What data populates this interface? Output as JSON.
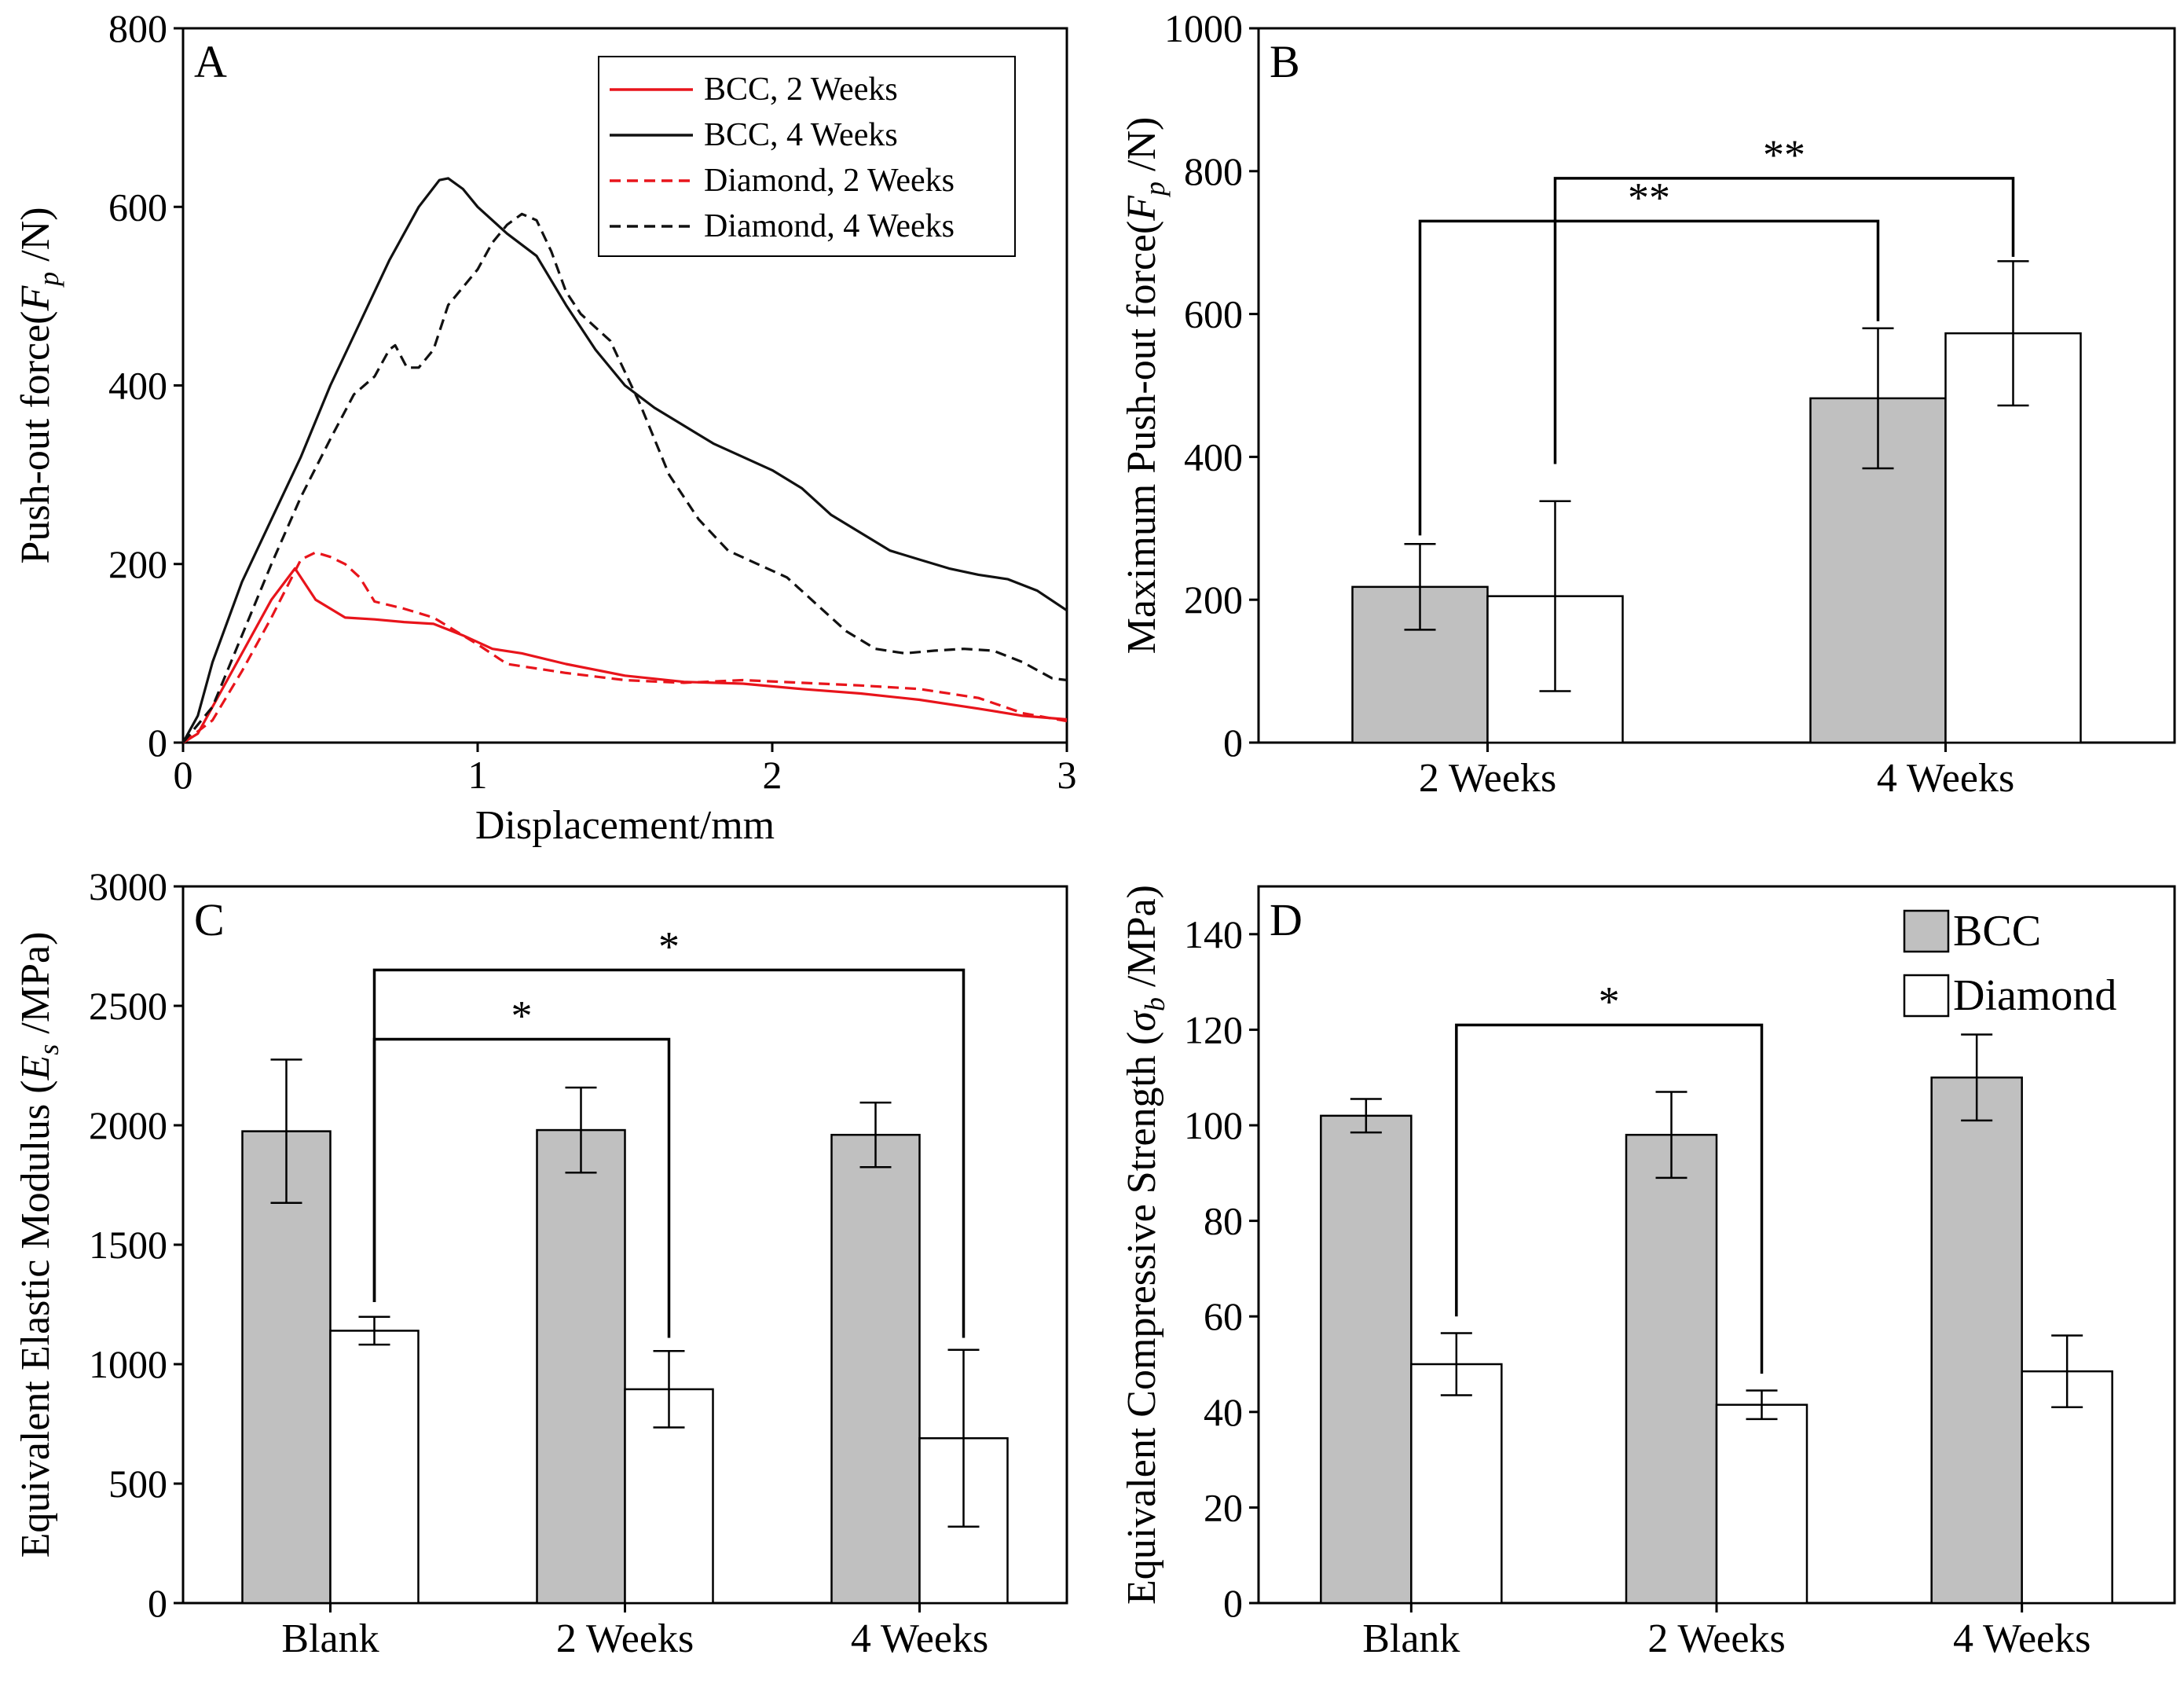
{
  "chart_data": [
    {
      "panel": "A",
      "type": "line",
      "xlabel": "Displacement/mm",
      "ylabel_prefix": "Push-out force(",
      "ylabel_sym": "F",
      "ylabel_sub": "p",
      "ylabel_suffix": " /N)",
      "xlim": [
        0,
        3
      ],
      "ylim": [
        0,
        800
      ],
      "xticks": [
        0,
        1,
        2,
        3
      ],
      "yticks": [
        0,
        200,
        400,
        600,
        800
      ],
      "legend_position": "top-right",
      "series": [
        {
          "name": "BCC, 2 Weeks",
          "color": "#e8141b",
          "dash": "solid",
          "x": [
            0,
            0.05,
            0.1,
            0.2,
            0.3,
            0.38,
            0.45,
            0.55,
            0.65,
            0.75,
            0.85,
            0.95,
            1.05,
            1.15,
            1.3,
            1.5,
            1.7,
            1.9,
            2.1,
            2.3,
            2.5,
            2.7,
            2.85,
            3.0
          ],
          "y": [
            0,
            10,
            40,
            100,
            160,
            195,
            160,
            140,
            138,
            135,
            133,
            120,
            105,
            100,
            88,
            75,
            68,
            66,
            60,
            55,
            48,
            38,
            30,
            26
          ]
        },
        {
          "name": "BCC, 4 Weeks",
          "color": "#111111",
          "dash": "solid",
          "x": [
            0,
            0.05,
            0.1,
            0.2,
            0.3,
            0.4,
            0.5,
            0.6,
            0.7,
            0.8,
            0.87,
            0.9,
            0.95,
            1.0,
            1.1,
            1.2,
            1.3,
            1.4,
            1.5,
            1.6,
            1.7,
            1.8,
            1.9,
            2.0,
            2.1,
            2.2,
            2.3,
            2.4,
            2.5,
            2.6,
            2.7,
            2.8,
            2.9,
            3.0
          ],
          "y": [
            0,
            30,
            90,
            180,
            250,
            320,
            400,
            470,
            540,
            600,
            630,
            632,
            620,
            600,
            570,
            545,
            490,
            440,
            400,
            375,
            355,
            335,
            320,
            305,
            285,
            255,
            235,
            215,
            205,
            195,
            188,
            183,
            170,
            148
          ]
        },
        {
          "name": "Diamond, 2 Weeks",
          "color": "#e8141b",
          "dash": "dashed",
          "x": [
            0,
            0.1,
            0.2,
            0.3,
            0.4,
            0.45,
            0.5,
            0.55,
            0.6,
            0.65,
            0.75,
            0.85,
            1.0,
            1.1,
            1.3,
            1.5,
            1.7,
            1.9,
            2.1,
            2.3,
            2.5,
            2.7,
            2.85,
            3.0
          ],
          "y": [
            0,
            25,
            80,
            140,
            205,
            213,
            208,
            200,
            185,
            158,
            150,
            140,
            110,
            88,
            78,
            70,
            67,
            70,
            67,
            64,
            60,
            50,
            33,
            24
          ]
        },
        {
          "name": "Diamond, 4 Weeks",
          "color": "#111111",
          "dash": "dashed",
          "x": [
            0,
            0.1,
            0.2,
            0.3,
            0.4,
            0.5,
            0.58,
            0.65,
            0.7,
            0.72,
            0.76,
            0.8,
            0.85,
            0.9,
            0.95,
            1.0,
            1.05,
            1.1,
            1.15,
            1.2,
            1.25,
            1.3,
            1.35,
            1.45,
            1.55,
            1.65,
            1.75,
            1.85,
            1.95,
            2.05,
            2.15,
            2.25,
            2.35,
            2.45,
            2.55,
            2.65,
            2.75,
            2.85,
            2.95,
            3.0
          ],
          "y": [
            0,
            40,
            120,
            200,
            275,
            340,
            390,
            410,
            440,
            445,
            420,
            420,
            440,
            490,
            510,
            530,
            560,
            580,
            592,
            585,
            550,
            505,
            480,
            450,
            380,
            300,
            250,
            215,
            200,
            185,
            155,
            125,
            105,
            100,
            103,
            105,
            103,
            90,
            72,
            70
          ]
        }
      ]
    },
    {
      "panel": "B",
      "type": "bar",
      "ylabel_prefix": "Maximum Push-out force(",
      "ylabel_sym": "F",
      "ylabel_sub": "p",
      "ylabel_suffix": " /N)",
      "categories": [
        "2 Weeks",
        "4 Weeks"
      ],
      "ylim": [
        0,
        1000
      ],
      "yticks": [
        0,
        200,
        400,
        600,
        800,
        1000
      ],
      "series": [
        {
          "name": "BCC",
          "color": "#c0c0c0",
          "values": [
            218,
            482
          ],
          "errors": [
            60,
            98
          ]
        },
        {
          "name": "Diamond",
          "color": "#ffffff",
          "values": [
            205,
            573
          ],
          "errors": [
            133,
            101
          ]
        }
      ],
      "significance": [
        {
          "from": [
            0,
            0
          ],
          "to": [
            1,
            0
          ],
          "label": "**"
        },
        {
          "from": [
            0,
            1
          ],
          "to": [
            1,
            1
          ],
          "label": "**"
        }
      ]
    },
    {
      "panel": "C",
      "type": "bar",
      "ylabel_prefix": "Equivalent Elastic Modulus (",
      "ylabel_sym": "E",
      "ylabel_sub": "s",
      "ylabel_suffix": " /MPa)",
      "categories": [
        "Blank",
        "2 Weeks",
        "4 Weeks"
      ],
      "ylim": [
        0,
        3000
      ],
      "yticks": [
        0,
        500,
        1000,
        1500,
        2000,
        2500,
        3000
      ],
      "series": [
        {
          "name": "BCC",
          "color": "#c0c0c0",
          "values": [
            1975,
            1980,
            1960
          ],
          "errors": [
            300,
            178,
            135
          ]
        },
        {
          "name": "Diamond",
          "color": "#ffffff",
          "values": [
            1140,
            895,
            690
          ],
          "errors": [
            58,
            160,
            370
          ]
        }
      ],
      "significance": [
        {
          "from": [
            0,
            1
          ],
          "to": [
            1,
            1
          ],
          "label": "*"
        },
        {
          "from": [
            0,
            1
          ],
          "to": [
            2,
            1
          ],
          "label": "*"
        }
      ]
    },
    {
      "panel": "D",
      "type": "bar",
      "ylabel_prefix": "Equivalent Compressive Strength (",
      "ylabel_sym": "σ",
      "ylabel_sub": "b",
      "ylabel_suffix": " /MPa)",
      "categories": [
        "Blank",
        "2 Weeks",
        "4 Weeks"
      ],
      "ylim": [
        0,
        150
      ],
      "yticks": [
        0,
        20,
        40,
        60,
        80,
        100,
        120,
        140
      ],
      "legend": [
        "BCC",
        "Diamond"
      ],
      "legend_position": "top-right",
      "series": [
        {
          "name": "BCC",
          "color": "#c0c0c0",
          "values": [
            102,
            98,
            110
          ],
          "errors": [
            3.5,
            9,
            9
          ]
        },
        {
          "name": "Diamond",
          "color": "#ffffff",
          "values": [
            50,
            41.5,
            48.5
          ],
          "errors": [
            6.5,
            3,
            7.5
          ]
        }
      ],
      "significance": [
        {
          "from": [
            0,
            1
          ],
          "to": [
            1,
            1
          ],
          "label": "*"
        }
      ]
    }
  ]
}
